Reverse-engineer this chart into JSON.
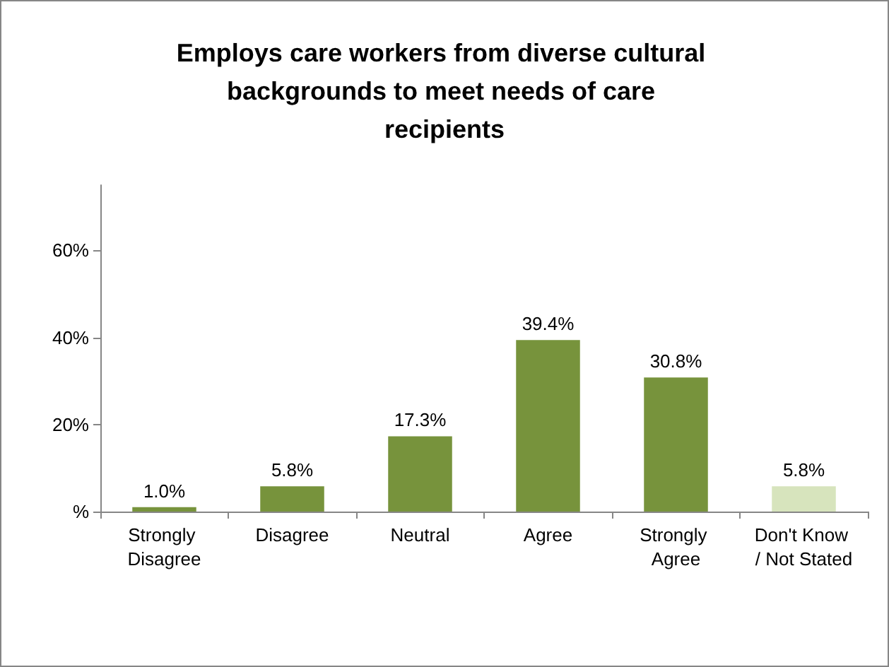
{
  "chart_data": {
    "type": "bar",
    "title": "Employs care workers from diverse cultural backgrounds to meet needs of care recipients",
    "categories": [
      "Strongly Disagree",
      "Disagree",
      "Neutral",
      "Agree",
      "Strongly Agree",
      "Don't Know / Not Stated"
    ],
    "values": [
      1.0,
      5.8,
      17.3,
      39.4,
      30.8,
      5.8
    ],
    "colors": [
      "#77933c",
      "#77933c",
      "#77933c",
      "#77933c",
      "#77933c",
      "#d7e4bd"
    ],
    "value_labels": [
      "1.0%",
      "5.8%",
      "17.3%",
      "39.4%",
      "30.8%",
      "5.8%"
    ],
    "ylim": [
      0,
      75
    ],
    "yticks": [
      {
        "value": 0,
        "label": "%"
      },
      {
        "value": 20,
        "label": "20%"
      },
      {
        "value": 40,
        "label": "40%"
      },
      {
        "value": 60,
        "label": "60%"
      }
    ],
    "grid": false
  }
}
